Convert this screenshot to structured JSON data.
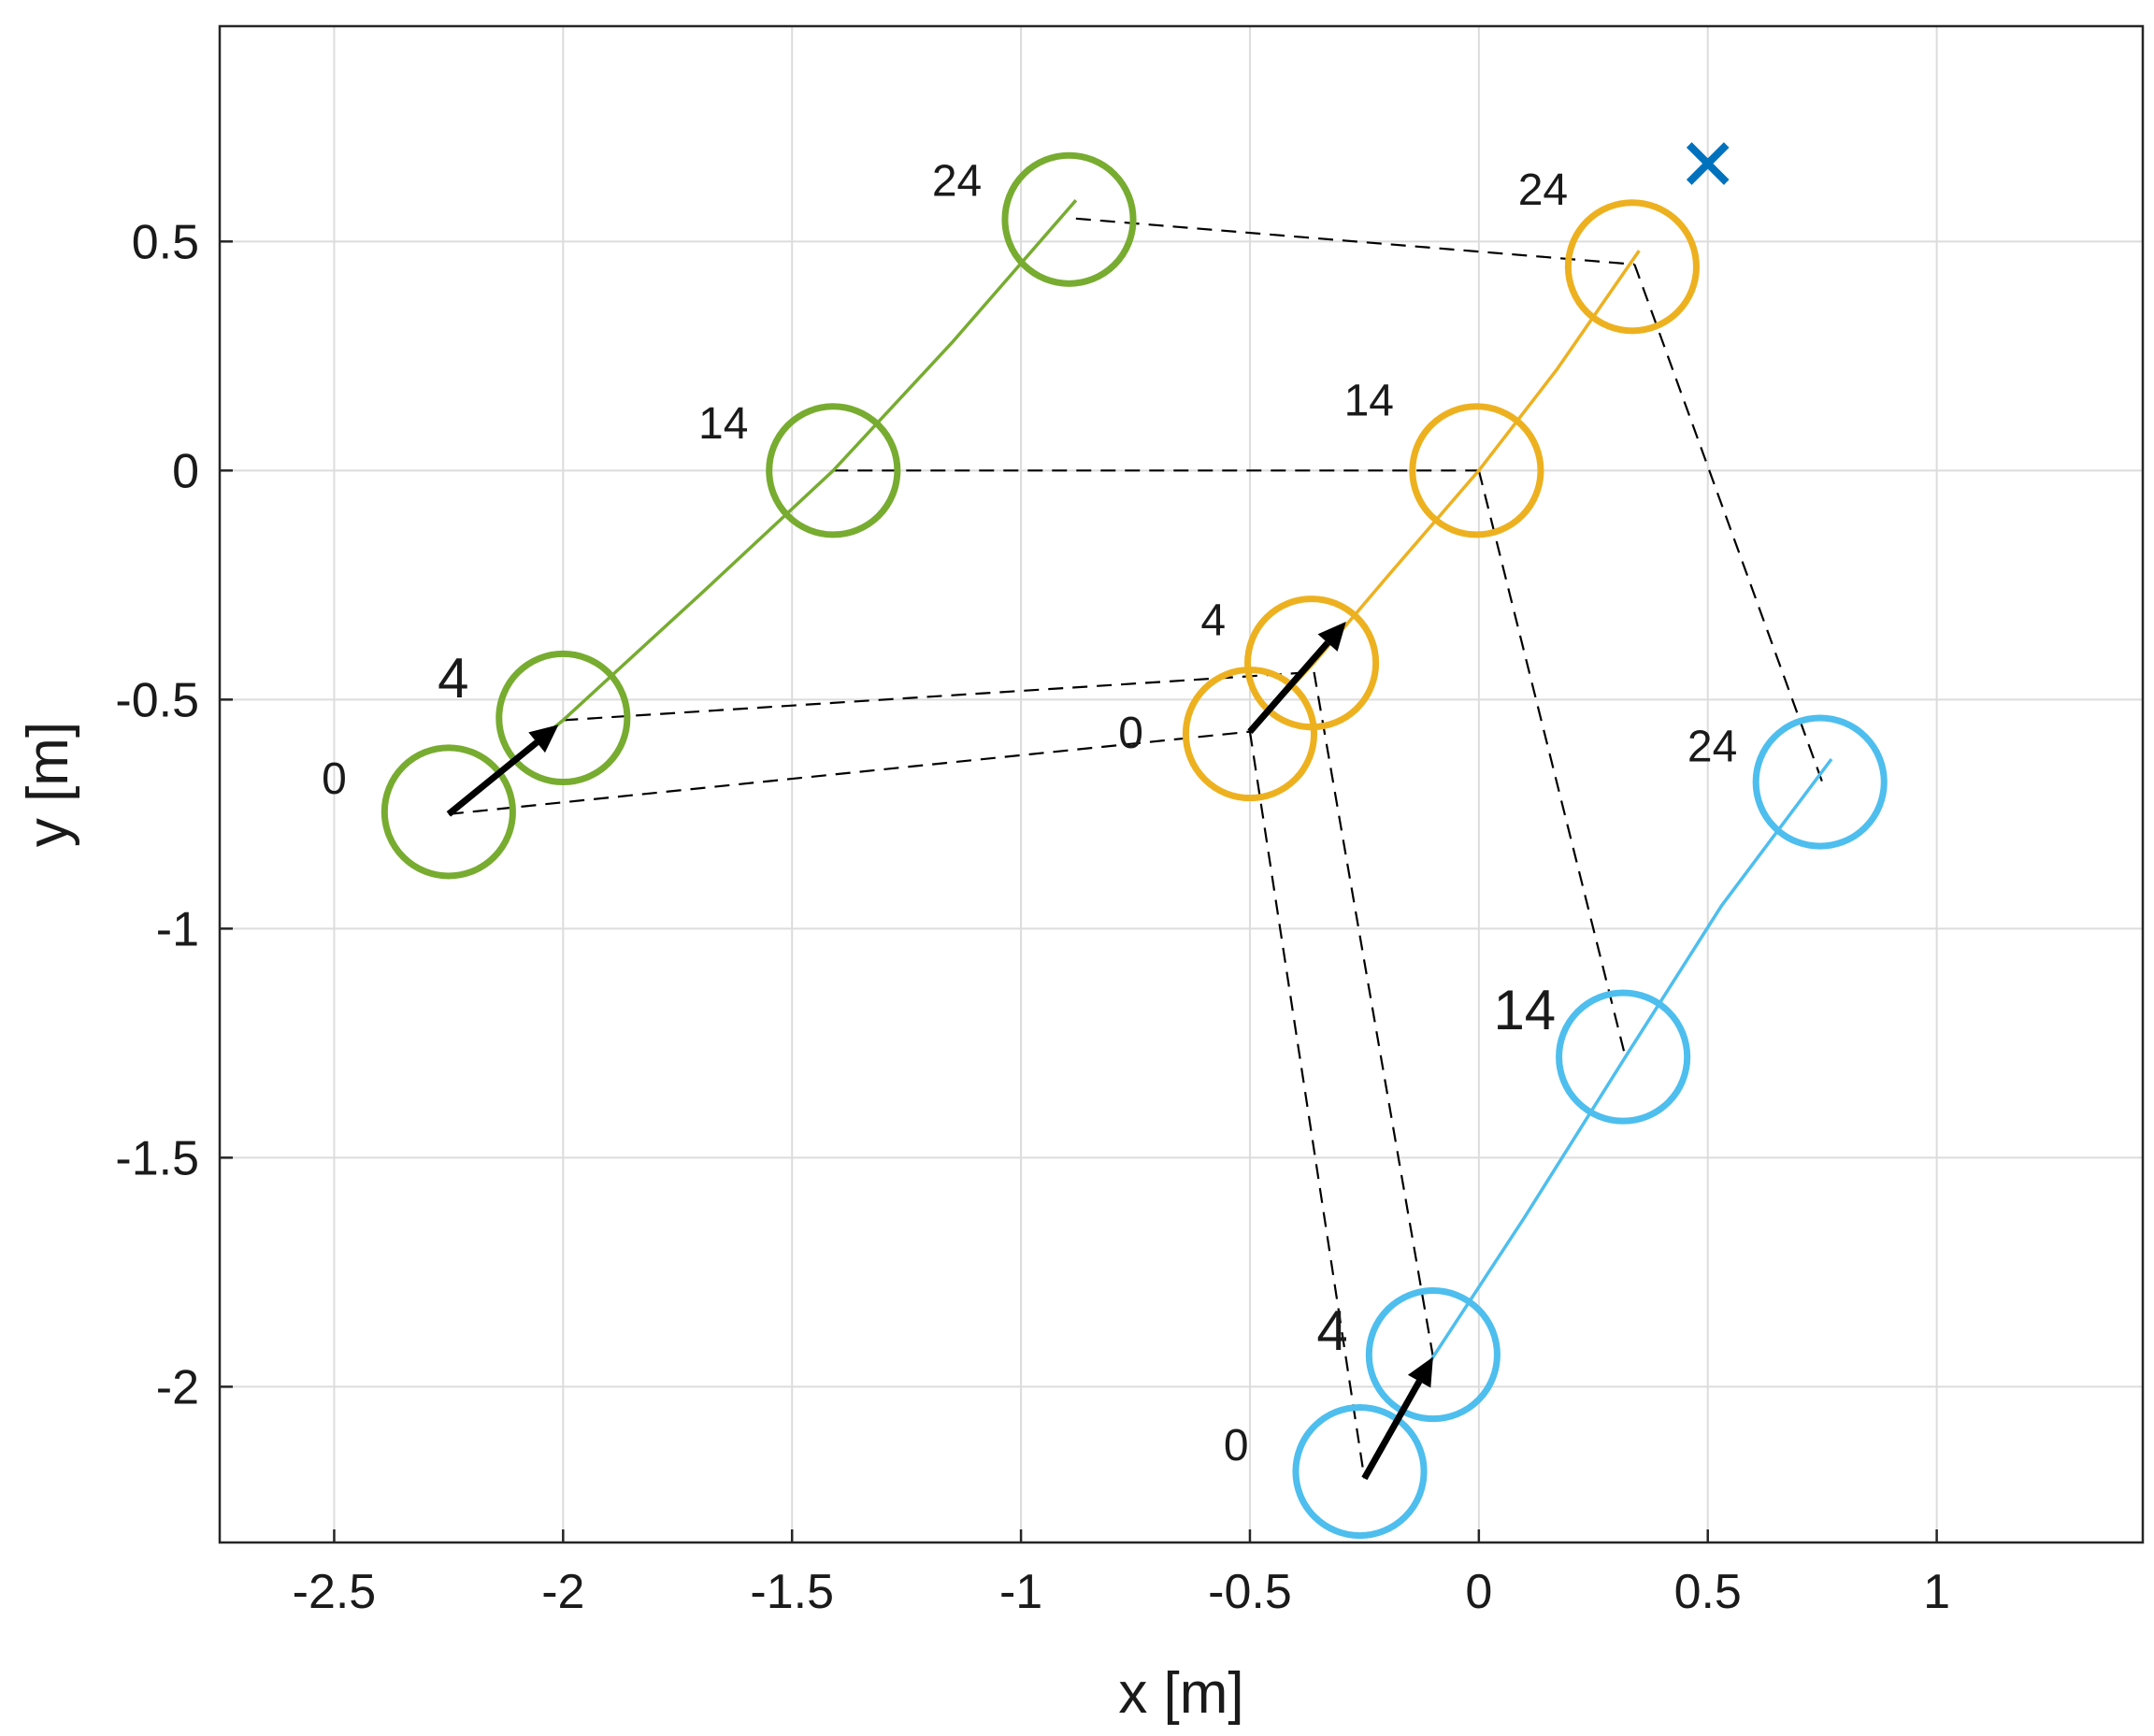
{
  "chart_data": {
    "type": "scatter",
    "title": "",
    "xlabel": "x [m]",
    "ylabel": "y [m]",
    "xlim": [
      -2.75,
      1.45
    ],
    "ylim": [
      -2.34,
      0.97
    ],
    "grid": true,
    "xticks": [
      -2.5,
      -2,
      -1.5,
      -1,
      -0.5,
      0,
      0.5,
      1
    ],
    "xtick_labels": [
      "-2.5",
      "-2",
      "-1.5",
      "-1",
      "-0.5",
      "0",
      "0.5",
      "1"
    ],
    "yticks": [
      0.5,
      0,
      -0.5,
      -1,
      -1.5,
      -2
    ],
    "ytick_labels": [
      "0.5",
      "0",
      "-0.5",
      "-1",
      "-1.5",
      "-2"
    ],
    "circle_radius": 0.14,
    "colors": {
      "green": "#77ac30",
      "orange": "#edb120",
      "blue": "#4dbeee",
      "target": "#0072bd",
      "arrow": "#000000",
      "link": "#000000"
    },
    "series": [
      {
        "name": "green",
        "color": "#77ac30",
        "path": [
          [
            -2.25,
            -0.75
          ],
          [
            -2.0,
            -0.545
          ],
          [
            -1.7,
            -0.27
          ],
          [
            -1.41,
            0.0
          ],
          [
            -1.15,
            0.28
          ],
          [
            -0.88,
            0.59
          ]
        ],
        "circles": [
          {
            "t": "0",
            "x": -2.25,
            "y": -0.745
          },
          {
            "t": "4",
            "x": -2.0,
            "y": -0.54
          },
          {
            "t": "14",
            "x": -1.41,
            "y": 0.0
          },
          {
            "t": "24",
            "x": -0.895,
            "y": 0.548
          }
        ],
        "labels": [
          {
            "text": "0",
            "x": -2.5,
            "y": -0.705
          },
          {
            "text": "4",
            "x": -2.24,
            "y": -0.495
          },
          {
            "text": "14",
            "x": -1.65,
            "y": 0.07
          },
          {
            "text": "24",
            "x": -1.14,
            "y": 0.6
          }
        ],
        "arrow": {
          "from": [
            -2.25,
            -0.75
          ],
          "to": [
            -2.01,
            -0.555
          ]
        }
      },
      {
        "name": "orange",
        "color": "#edb120",
        "path": [
          [
            -0.5,
            -0.57
          ],
          [
            -0.36,
            -0.42
          ],
          [
            -0.19,
            -0.22
          ],
          [
            0.0,
            0.0
          ],
          [
            0.17,
            0.22
          ],
          [
            0.35,
            0.48
          ]
        ],
        "circles": [
          {
            "t": "0",
            "x": -0.5,
            "y": -0.575
          },
          {
            "t": "4",
            "x": -0.365,
            "y": -0.42
          },
          {
            "t": "14",
            "x": -0.005,
            "y": 0.0
          },
          {
            "t": "24",
            "x": 0.335,
            "y": 0.445
          }
        ],
        "labels": [
          {
            "text": "0",
            "x": -0.76,
            "y": -0.605
          },
          {
            "text": "4",
            "x": -0.58,
            "y": -0.36
          },
          {
            "text": "14",
            "x": -0.24,
            "y": 0.12
          },
          {
            "text": "24",
            "x": 0.14,
            "y": 0.58
          }
        ],
        "arrow": {
          "from": [
            -0.5,
            -0.57
          ],
          "to": [
            -0.29,
            -0.33
          ]
        }
      },
      {
        "name": "blue",
        "color": "#4dbeee",
        "path": [
          [
            -0.25,
            -2.2
          ],
          [
            -0.1,
            -1.935
          ],
          [
            0.1,
            -1.63
          ],
          [
            0.32,
            -1.28
          ],
          [
            0.53,
            -0.95
          ],
          [
            0.77,
            -0.63
          ]
        ],
        "circles": [
          {
            "t": "0",
            "x": -0.26,
            "y": -2.185
          },
          {
            "t": "4",
            "x": -0.1,
            "y": -1.93
          },
          {
            "t": "14",
            "x": 0.315,
            "y": -1.28
          },
          {
            "t": "24",
            "x": 0.745,
            "y": -0.68
          }
        ],
        "labels": [
          {
            "text": "0",
            "x": -0.53,
            "y": -2.16
          },
          {
            "text": "4",
            "x": -0.32,
            "y": -1.92
          },
          {
            "text": "14",
            "x": 0.1,
            "y": -1.22
          },
          {
            "text": "24",
            "x": 0.51,
            "y": -0.635
          }
        ],
        "arrow": {
          "from": [
            -0.25,
            -2.2
          ],
          "to": [
            -0.1,
            -1.935
          ]
        }
      }
    ],
    "links": [
      [
        [
          -2.25,
          -0.75
        ],
        [
          -0.5,
          -0.57
        ]
      ],
      [
        [
          -2.0,
          -0.545
        ],
        [
          -0.36,
          -0.44
        ]
      ],
      [
        [
          -1.41,
          0.0
        ],
        [
          0.0,
          0.0
        ]
      ],
      [
        [
          -0.88,
          0.55
        ],
        [
          0.34,
          0.45
        ]
      ],
      [
        [
          -0.5,
          -0.57
        ],
        [
          -0.25,
          -2.2
        ]
      ],
      [
        [
          -0.36,
          -0.44
        ],
        [
          -0.1,
          -1.935
        ]
      ],
      [
        [
          0.0,
          0.0
        ],
        [
          0.32,
          -1.28
        ]
      ],
      [
        [
          0.34,
          0.45
        ],
        [
          0.75,
          -0.68
        ]
      ]
    ],
    "target": {
      "marker": "x",
      "x": 0.5,
      "y": 0.67,
      "color": "#0072bd"
    }
  }
}
